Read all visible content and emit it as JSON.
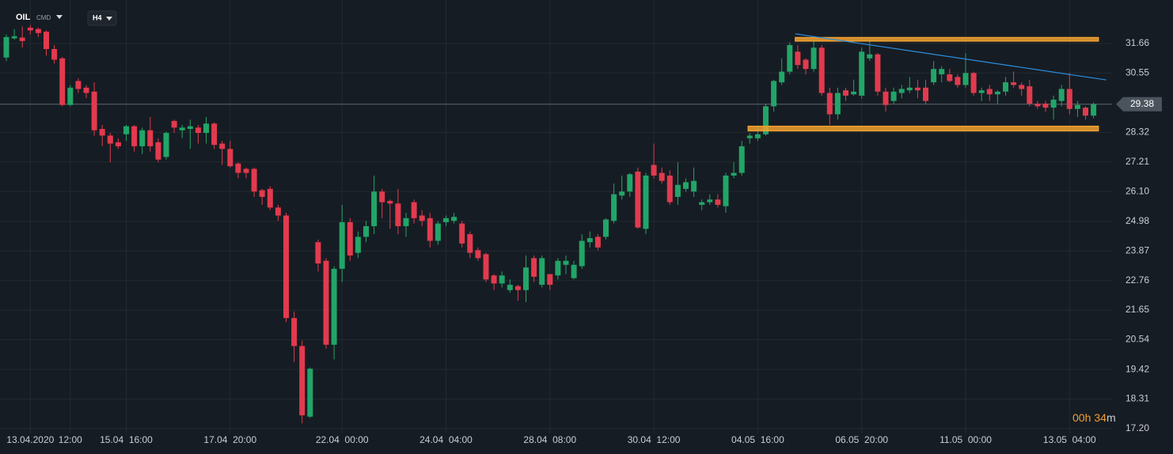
{
  "header": {
    "symbol": "OIL",
    "market": "CMD",
    "interval": "H4"
  },
  "timer": {
    "hours": "00",
    "hours_unit": "h",
    "minutes": "34",
    "minutes_unit": "m"
  },
  "chart_data": {
    "type": "candlestick",
    "categories": [
      null,
      null,
      null,
      "13.04.2020",
      null,
      null,
      null,
      null,
      "12:00",
      null,
      null,
      null,
      null,
      null,
      null,
      "15.04  16:00",
      null,
      null,
      null,
      null,
      null,
      null,
      null,
      null,
      null,
      null,
      null,
      null,
      "17.04  20:00",
      null,
      null,
      null,
      null,
      null,
      null,
      null,
      null,
      null,
      null,
      null,
      null,
      null,
      "22.04  00:00",
      null,
      null,
      null,
      null,
      null,
      null,
      null,
      null,
      null,
      null,
      null,
      null,
      "24.04  04:00",
      null,
      null,
      null,
      null,
      null,
      null,
      null,
      null,
      null,
      null,
      null,
      null,
      "28.04  08:00",
      null,
      null,
      null,
      null,
      null,
      null,
      null,
      null,
      null,
      null,
      null,
      null,
      "30.04  12:00",
      null,
      null,
      null,
      null,
      null,
      null,
      null,
      null,
      null,
      null,
      null,
      null,
      "04.05  16:00",
      null,
      null,
      null,
      null,
      null,
      null,
      null,
      null,
      null,
      null,
      null,
      null,
      "06.05  20:00",
      null,
      null,
      null,
      null,
      null,
      null,
      null,
      null,
      null,
      null,
      null,
      null,
      "11.05  00:00",
      null,
      null,
      null,
      null,
      null,
      null,
      null,
      null,
      null,
      null,
      null,
      null,
      "13.05  04:00",
      null,
      null,
      null
    ],
    "open": [
      31.13,
      31.85,
      31.88,
      32.25,
      32.2,
      32.1,
      31.45,
      31.1,
      29.35,
      30.25,
      30.0,
      29.85,
      28.45,
      28.2,
      27.95,
      28.25,
      28.55,
      27.8,
      28.4,
      27.95,
      27.4,
      28.75,
      28.4,
      28.45,
      28.5,
      28.3,
      28.65,
      27.9,
      27.7,
      27.15,
      26.95,
      26.95,
      26.15,
      26.2,
      25.5,
      25.2,
      21.35,
      20.3,
      17.65,
      24.2,
      23.5,
      20.35,
      23.2,
      24.95,
      23.8,
      24.4,
      24.8,
      26.1,
      25.75,
      25.65,
      24.8,
      25.7,
      25.2,
      25.1,
      24.25,
      24.95,
      25.0,
      24.9,
      24.5,
      23.9,
      23.75,
      22.95,
      22.65,
      22.4,
      22.55,
      22.4,
      23.6,
      22.6,
      23.0,
      22.95,
      23.35,
      22.85,
      23.3,
      24.2,
      24.4,
      24.4,
      25.0,
      25.95,
      26.1,
      26.85,
      24.7,
      27.1,
      26.8,
      26.7,
      25.9,
      26.2,
      26.1,
      25.6,
      25.7,
      25.8,
      25.55,
      26.7,
      26.8,
      28.1,
      28.1,
      28.25,
      29.3,
      30.2,
      30.6,
      31.35,
      31.05,
      30.7,
      31.5,
      29.8,
      29.0,
      29.9,
      29.75,
      29.7,
      31.1,
      31.25,
      29.85,
      29.5,
      29.8,
      29.9,
      30.0,
      30.0,
      30.2,
      30.5,
      30.5,
      30.4,
      30.1,
      30.55,
      29.8,
      29.95,
      29.75,
      29.85,
      30.2,
      30.1,
      30.05,
      29.4,
      29.4,
      29.25,
      29.5,
      29.95,
      29.2,
      29.25,
      28.95
    ],
    "high": [
      32.0,
      32.2,
      32.3,
      32.35,
      32.25,
      32.15,
      31.6,
      31.15,
      30.1,
      30.35,
      30.1,
      30.2,
      28.6,
      28.3,
      28.1,
      28.6,
      28.6,
      28.5,
      28.9,
      28.1,
      28.35,
      28.8,
      28.6,
      28.8,
      28.6,
      28.9,
      28.7,
      28.0,
      28.0,
      27.2,
      27.0,
      27.0,
      26.2,
      26.3,
      25.6,
      25.3,
      21.6,
      20.5,
      19.5,
      24.3,
      23.6,
      23.3,
      25.6,
      25.1,
      24.6,
      25.0,
      26.7,
      26.2,
      25.8,
      26.2,
      25.3,
      25.8,
      25.4,
      25.3,
      25.0,
      25.2,
      25.3,
      25.0,
      24.6,
      24.0,
      23.8,
      23.0,
      23.1,
      22.8,
      22.6,
      23.7,
      23.7,
      23.7,
      23.0,
      23.6,
      23.7,
      23.5,
      24.5,
      24.6,
      24.5,
      25.1,
      26.4,
      26.7,
      26.8,
      27.0,
      26.8,
      27.9,
      27.0,
      26.9,
      27.2,
      26.6,
      27.0,
      25.8,
      26.0,
      26.0,
      26.8,
      27.2,
      28.0,
      28.3,
      28.5,
      29.4,
      30.3,
      31.1,
      31.7,
      31.6,
      31.1,
      31.8,
      31.6,
      30.0,
      30.0,
      30.0,
      30.3,
      31.5,
      31.8,
      31.3,
      30.0,
      30.0,
      30.1,
      30.4,
      30.3,
      30.3,
      31.0,
      30.8,
      30.7,
      30.5,
      31.3,
      30.6,
      30.0,
      30.1,
      29.9,
      30.4,
      30.6,
      30.2,
      30.3,
      29.5,
      29.5,
      29.7,
      30.1,
      30.55,
      29.5,
      29.3,
      29.45
    ],
    "low": [
      31.0,
      31.8,
      31.5,
      32.0,
      31.9,
      31.2,
      30.9,
      29.3,
      29.3,
      29.8,
      29.6,
      28.2,
      27.8,
      27.2,
      27.7,
      28.0,
      27.6,
      27.5,
      27.6,
      27.2,
      27.3,
      28.3,
      28.1,
      27.7,
      27.9,
      27.9,
      27.7,
      27.1,
      27.0,
      26.6,
      26.6,
      25.9,
      25.6,
      25.4,
      25.0,
      21.2,
      19.7,
      17.4,
      17.6,
      23.1,
      20.2,
      19.8,
      22.7,
      23.5,
      23.6,
      24.2,
      24.5,
      25.1,
      24.7,
      24.5,
      24.4,
      24.9,
      24.8,
      24.0,
      24.1,
      24.8,
      24.9,
      24.0,
      23.6,
      23.5,
      22.7,
      22.4,
      22.5,
      22.3,
      22.0,
      21.95,
      22.7,
      22.5,
      22.4,
      22.8,
      23.0,
      22.8,
      23.2,
      24.0,
      23.9,
      24.3,
      24.9,
      25.8,
      25.9,
      24.7,
      24.5,
      26.6,
      26.4,
      25.6,
      25.6,
      26.1,
      25.9,
      25.4,
      25.6,
      25.5,
      25.3,
      26.6,
      26.7,
      27.9,
      28.0,
      28.2,
      29.1,
      30.1,
      30.5,
      30.7,
      30.5,
      30.6,
      29.7,
      28.6,
      28.8,
      29.5,
      29.7,
      29.6,
      31.0,
      29.7,
      29.1,
      29.4,
      29.6,
      29.8,
      29.6,
      29.4,
      30.1,
      30.2,
      30.2,
      30.0,
      30.0,
      29.7,
      29.5,
      29.5,
      29.4,
      29.7,
      30.0,
      29.7,
      29.3,
      29.2,
      29.1,
      28.8,
      29.3,
      29.0,
      28.9,
      28.8,
      28.85
    ],
    "close": [
      31.9,
      31.93,
      31.75,
      32.15,
      32.05,
      31.45,
      31.05,
      29.35,
      30.0,
      29.95,
      29.8,
      28.4,
      28.2,
      27.9,
      27.8,
      28.55,
      27.8,
      28.4,
      27.8,
      27.3,
      28.3,
      28.5,
      28.5,
      28.55,
      28.3,
      28.65,
      27.85,
      27.7,
      27.05,
      26.8,
      26.8,
      26.1,
      25.9,
      25.5,
      25.2,
      21.35,
      20.3,
      17.7,
      19.45,
      23.4,
      20.35,
      23.2,
      24.95,
      23.7,
      24.4,
      24.8,
      26.1,
      25.7,
      25.65,
      24.8,
      25.1,
      25.1,
      25.0,
      24.25,
      24.9,
      25.1,
      25.15,
      24.15,
      23.8,
      23.6,
      22.8,
      22.65,
      22.95,
      22.6,
      22.4,
      23.25,
      22.9,
      23.6,
      22.6,
      23.5,
      23.5,
      23.35,
      24.25,
      24.35,
      24.0,
      25.05,
      26.0,
      26.1,
      26.75,
      24.75,
      26.7,
      26.7,
      26.5,
      25.7,
      26.35,
      26.45,
      26.5,
      25.7,
      25.8,
      25.6,
      26.7,
      26.8,
      27.8,
      28.2,
      28.25,
      29.3,
      30.25,
      30.6,
      31.6,
      30.85,
      30.7,
      31.5,
      29.8,
      29.0,
      29.8,
      29.7,
      29.85,
      31.35,
      31.25,
      29.85,
      29.35,
      29.85,
      29.95,
      30.0,
      29.9,
      29.5,
      30.7,
      30.7,
      30.25,
      30.1,
      30.55,
      29.8,
      29.9,
      29.75,
      29.85,
      30.2,
      30.1,
      29.95,
      29.4,
      29.3,
      29.25,
      29.55,
      29.95,
      29.2,
      29.35,
      28.95,
      29.38
    ],
    "up_color": "#22a568",
    "down_color": "#e23a4e",
    "ylim": [
      17.02,
      33.29
    ],
    "yticks": [
      31.66,
      30.55,
      28.32,
      27.21,
      {
        "value": 26.1,
        "label": "26.10"
      },
      24.98,
      23.87,
      22.76,
      21.65,
      20.54,
      19.42,
      18.31,
      {
        "value": 17.2,
        "label": "17.20"
      }
    ],
    "grid": true,
    "last_price": 29.38,
    "zones": [
      {
        "y": [
          31.75,
          31.88
        ],
        "x": [
          98.7,
          136.6
        ]
      },
      {
        "y": [
          28.38,
          28.55
        ],
        "x": [
          92.8,
          136.6
        ]
      }
    ],
    "zone_color": "#f0a030",
    "trendline": {
      "x": [
        98.7,
        137.6
      ],
      "y": [
        32.02,
        30.29
      ],
      "color": "#2a8ee0"
    }
  }
}
